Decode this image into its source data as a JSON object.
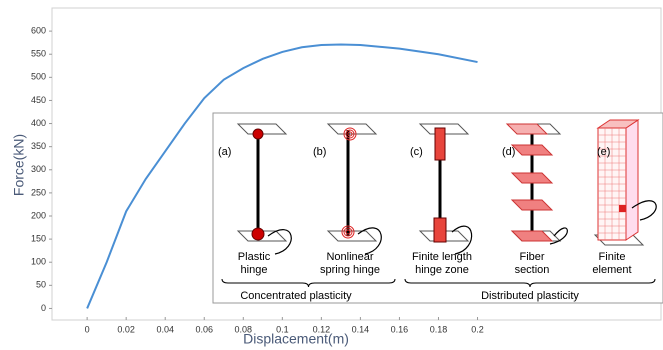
{
  "chart_data": {
    "type": "line",
    "x_label": "Displacement(m)",
    "y_label": "Force(kN)",
    "x": [
      0,
      0.01,
      0.02,
      0.03,
      0.04,
      0.05,
      0.06,
      0.07,
      0.08,
      0.09,
      0.1,
      0.11,
      0.12,
      0.13,
      0.14,
      0.16,
      0.18,
      0.2
    ],
    "values": [
      0,
      100,
      210,
      280,
      340,
      400,
      455,
      495,
      520,
      540,
      555,
      565,
      570,
      571,
      570,
      562,
      550,
      533
    ],
    "color": "#4a8fd4",
    "xlim": [
      -0.018,
      0.294
    ],
    "ylim": [
      -25,
      650
    ],
    "xticks": [
      0,
      0.02,
      0.04,
      0.06,
      0.08,
      0.1,
      0.12,
      0.14,
      0.16,
      0.18,
      0.2
    ],
    "yticks": [
      0,
      50,
      100,
      150,
      200,
      250,
      300,
      350,
      400,
      450,
      500,
      550,
      600
    ],
    "grid": false
  },
  "inset": {
    "panels": [
      {
        "tag": "(a)",
        "caption": [
          "Plastic",
          "hinge"
        ]
      },
      {
        "tag": "(b)",
        "caption": [
          "Nonlinear",
          "spring hinge"
        ]
      },
      {
        "tag": "(c)",
        "caption": [
          "Finite length",
          "hinge zone"
        ]
      },
      {
        "tag": "(d)",
        "caption": [
          "Fiber",
          "section"
        ]
      },
      {
        "tag": "(e)",
        "caption": [
          "Finite",
          "element"
        ]
      }
    ],
    "groups": [
      "Concentrated plasticity",
      "Distributed plasticity"
    ]
  }
}
